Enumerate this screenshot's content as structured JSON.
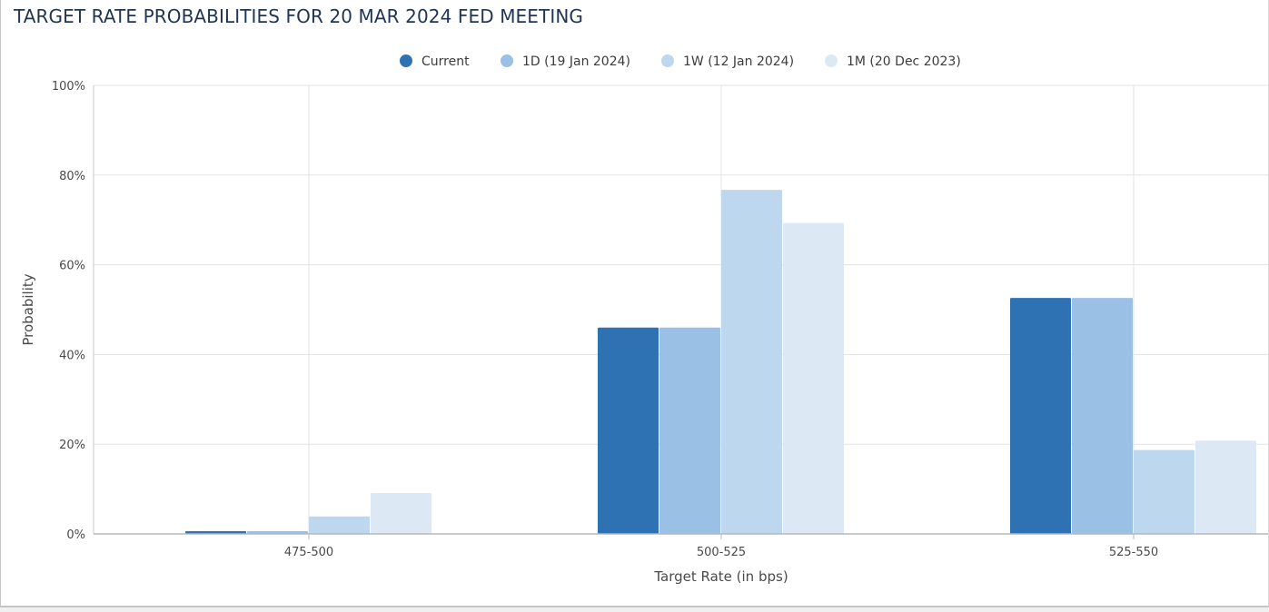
{
  "chart_data": {
    "type": "bar",
    "title": "TARGET RATE PROBABILITIES FOR 20 MAR 2024 FED MEETING",
    "xlabel": "Target Rate (in bps)",
    "ylabel": "Probability",
    "categories": [
      "475-500",
      "500-525",
      "525-550"
    ],
    "series": [
      {
        "name": "Current",
        "color": "#2e72b4",
        "values": [
          0.6,
          46.0,
          52.6
        ]
      },
      {
        "name": "1D (19 Jan 2024)",
        "color": "#9ac0e6",
        "values": [
          0.6,
          46.0,
          52.6
        ]
      },
      {
        "name": "1W (12 Jan 2024)",
        "color": "#bdd7ee",
        "values": [
          3.9,
          76.7,
          18.7
        ]
      },
      {
        "name": "1M (20 Dec 2023)",
        "color": "#dce9f5",
        "values": [
          9.1,
          69.3,
          20.8
        ]
      }
    ],
    "ylim": [
      0,
      100
    ],
    "yticks": [
      "0%",
      "20%",
      "40%",
      "60%",
      "80%",
      "100%"
    ],
    "ytick_values": [
      0,
      20,
      40,
      60,
      80,
      100
    ],
    "grid": true,
    "legend_position": "top-center"
  }
}
